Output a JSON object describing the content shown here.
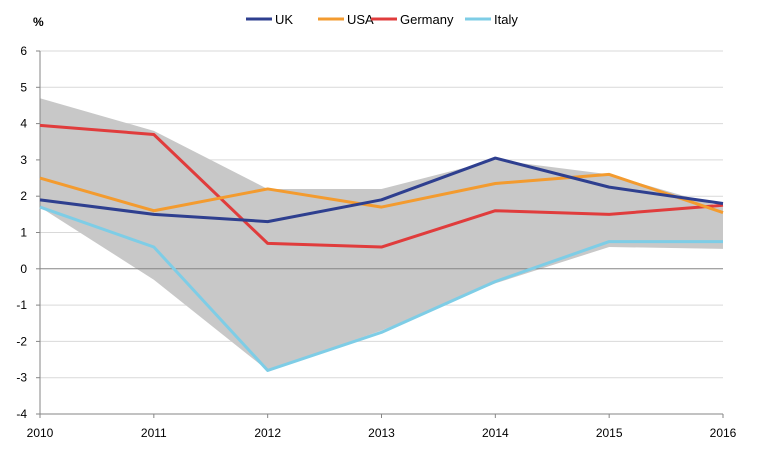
{
  "chart_data": {
    "type": "line",
    "ylabel": "%",
    "ylim": [
      -4,
      6
    ],
    "yticks": [
      "6",
      "5",
      "4",
      "3",
      "2",
      "1",
      "0",
      "-1",
      "-2",
      "-3",
      "-4"
    ],
    "x": [
      "2010",
      "2011",
      "2012",
      "2013",
      "2014",
      "2015",
      "2016"
    ],
    "grid": "horizontal",
    "legend": "top-center",
    "range_band": {
      "upper": [
        4.7,
        3.8,
        2.2,
        2.2,
        3.0,
        2.6,
        1.7
      ],
      "lower": [
        1.7,
        -0.3,
        -2.8,
        -1.7,
        -0.4,
        0.6,
        0.55
      ],
      "color": "#c8c8c8"
    },
    "series": [
      {
        "name": "UK",
        "color": "#2e3f8f",
        "values": [
          1.9,
          1.5,
          1.3,
          1.9,
          3.05,
          2.25,
          1.8
        ]
      },
      {
        "name": "USA",
        "color": "#f39b2f",
        "values": [
          2.5,
          1.6,
          2.2,
          1.7,
          2.35,
          2.6,
          1.55
        ]
      },
      {
        "name": "Germany",
        "color": "#e03c3c",
        "values": [
          3.95,
          3.7,
          0.7,
          0.6,
          1.6,
          1.5,
          1.75
        ]
      },
      {
        "name": "Italy",
        "color": "#7ecde6",
        "values": [
          1.7,
          0.6,
          -2.8,
          -1.75,
          -0.35,
          0.75,
          0.75
        ]
      }
    ]
  }
}
